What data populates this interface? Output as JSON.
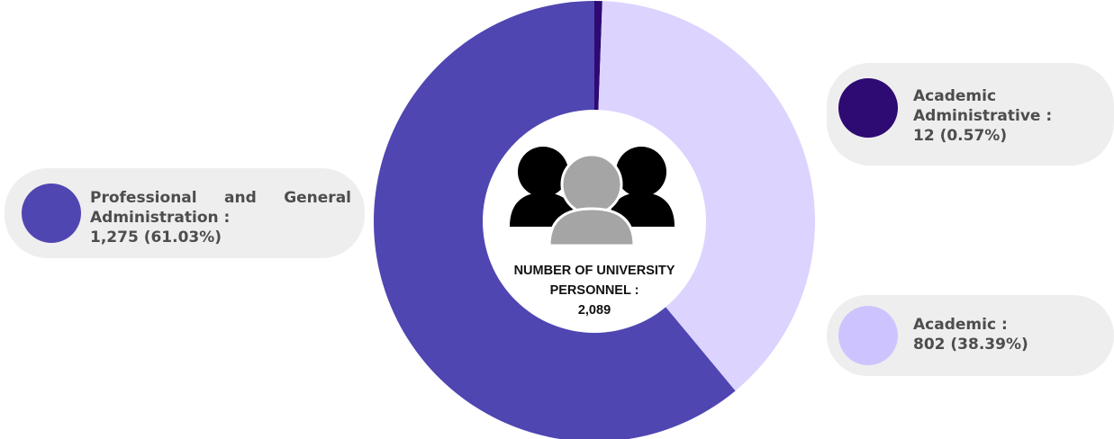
{
  "chart_data": {
    "type": "pie",
    "title": "",
    "total_label": "NUMBER OF UNIVERSITY PERSONNEL :",
    "total_value": "2,089",
    "slices": [
      {
        "name": "Academic Administrative",
        "value": 12,
        "percent": 0.57,
        "color": "#2e0a73"
      },
      {
        "name": "Academic",
        "value": 802,
        "percent": 38.39,
        "color": "#dcd3ff"
      },
      {
        "name": "Professional and General Administration",
        "value": 1275,
        "percent": 61.03,
        "color": "#4f46b2"
      }
    ]
  },
  "legend": {
    "academic_admin": {
      "line1": "Academic",
      "line2": "Administrative :",
      "line3": "12 (0.57%)",
      "dot_color": "#2e0a73"
    },
    "academic": {
      "line1": "Academic :",
      "line2": "802 (38.39%)",
      "dot_color": "#cdc4ff"
    },
    "professional": {
      "line1": "Professional and General",
      "line2": "Administration :",
      "line3": "1,275  (61.03%)",
      "dot_color": "#4f46b2"
    }
  },
  "center_icon": "people-group-icon"
}
